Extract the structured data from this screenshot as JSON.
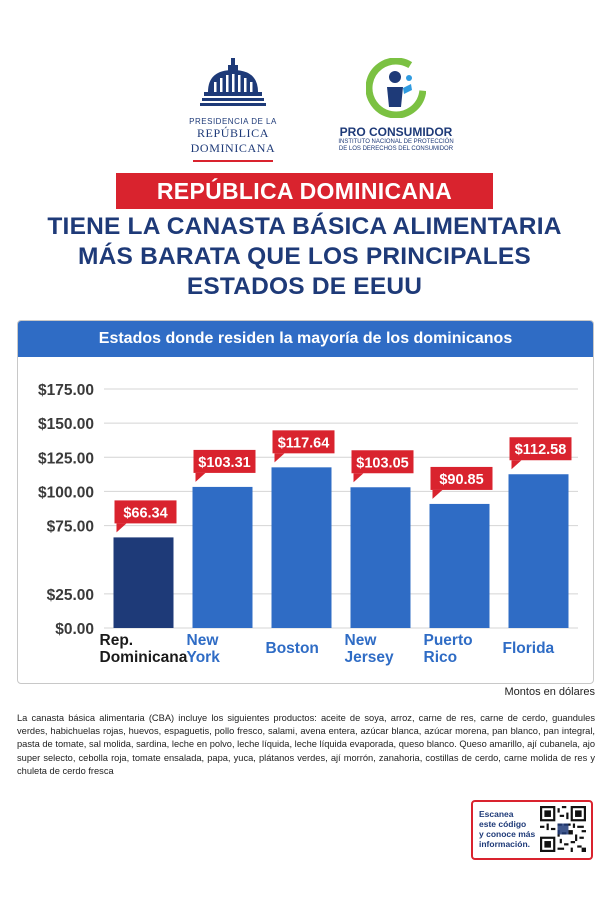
{
  "logos": {
    "presidencia_small": "PRESIDENCIA DE LA",
    "presidencia_big": "REPÚBLICA DOMINICANA",
    "proconsumidor_name": "PRO CONSUMIDOR",
    "proconsumidor_sub_1": "INSTITUTO NACIONAL DE PROTECCIÓN",
    "proconsumidor_sub_2": "DE LOS DERECHOS DEL CONSUMIDOR"
  },
  "banner": "REPÚBLICA DOMINICANA",
  "headline": {
    "line1": "TIENE LA CANASTA BÁSICA ALIMENTARIA",
    "line2": "MÁS BARATA QUE LOS PRINCIPALES",
    "line3": "ESTADOS DE EEUU"
  },
  "chart_data": {
    "type": "bar",
    "title": "Estados donde residen la mayoría de los dominicanos",
    "categories": [
      [
        "Rep.",
        "Dominicana"
      ],
      [
        "New",
        "York"
      ],
      [
        "Boston"
      ],
      [
        "New",
        "Jersey"
      ],
      [
        "Puerto",
        "Rico"
      ],
      [
        "Florida"
      ]
    ],
    "values": [
      66.34,
      103.31,
      117.64,
      103.05,
      90.85,
      112.58
    ],
    "value_labels": [
      "$66.34",
      "$103.31",
      "$117.64",
      "$103.05",
      "$90.85",
      "$112.58"
    ],
    "yticks": [
      "$0.00",
      "$25.00",
      "$75.00",
      "$100.00",
      "$125.00",
      "$150.00",
      "$175.00"
    ],
    "ylim": [
      0,
      175
    ],
    "grid": true,
    "colors": {
      "highlight": "#1e3a78",
      "bar": "#2f6cc5",
      "label_bg": "#d9232e",
      "category_first": "#1a1a1a",
      "category": "#2f6cc5",
      "tick": "#3a3a3a",
      "grid": "#d4d4d4"
    }
  },
  "amounts_note": "Montos en dólares",
  "description": "La canasta básica alimentaria (CBA) incluye los siguientes productos: aceite de soya, arroz, carne de res, carne de cerdo, guandules verdes, habichuelas rojas, huevos, espaguetis, pollo fresco, salami, avena entera, azúcar blanca, azúcar morena, pan blanco, pan integral, pasta de tomate, sal molida, sardina, leche en polvo, leche líquida, leche líquida evaporada, queso blanco. Queso amarillo, ají cubanela, ajo super selecto, cebolla roja, tomate ensalada, papa, yuca, plátanos verdes, ají morrón, zanahoria, costillas de cerdo, carne molida de res y chuleta de cerdo fresca",
  "qr": {
    "line1": "Escanea",
    "line2": "este código",
    "line3": "y conoce más",
    "line4": "información."
  }
}
